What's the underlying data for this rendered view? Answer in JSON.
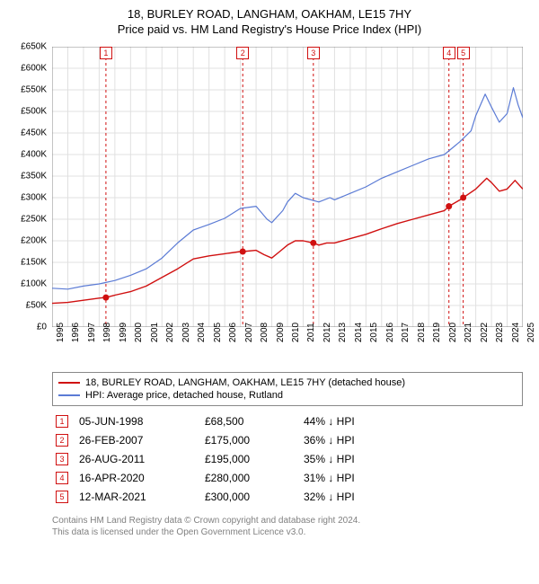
{
  "title": "18, BURLEY ROAD, LANGHAM, OAKHAM, LE15 7HY",
  "subtitle": "Price paid vs. HM Land Registry's House Price Index (HPI)",
  "chart": {
    "type": "line",
    "background_color": "#ffffff",
    "grid_color": "#e0e0e0",
    "tick_color": "#888888",
    "x": {
      "min": 1995,
      "max": 2025,
      "ticks": [
        1995,
        1996,
        1997,
        1998,
        1999,
        2000,
        2001,
        2002,
        2003,
        2004,
        2005,
        2006,
        2007,
        2008,
        2009,
        2010,
        2011,
        2012,
        2013,
        2014,
        2015,
        2016,
        2017,
        2018,
        2019,
        2020,
        2021,
        2022,
        2023,
        2024,
        2025
      ]
    },
    "y": {
      "min": 0,
      "max": 650000,
      "tick_step": 50000,
      "prefix": "£",
      "suffix_k": "K",
      "labels": [
        "£0",
        "£50K",
        "£100K",
        "£150K",
        "£200K",
        "£250K",
        "£300K",
        "£350K",
        "£400K",
        "£450K",
        "£500K",
        "£550K",
        "£600K",
        "£650K"
      ]
    },
    "series": [
      {
        "name": "property",
        "label": "18, BURLEY ROAD, LANGHAM, OAKHAM, LE15 7HY (detached house)",
        "color": "#d01010",
        "width": 1.4,
        "data": [
          [
            1995,
            55000
          ],
          [
            1996,
            57000
          ],
          [
            1997,
            62000
          ],
          [
            1998,
            67000
          ],
          [
            1998.43,
            68500
          ],
          [
            1999,
            74000
          ],
          [
            2000,
            82000
          ],
          [
            2001,
            95000
          ],
          [
            2002,
            115000
          ],
          [
            2003,
            135000
          ],
          [
            2004,
            158000
          ],
          [
            2005,
            165000
          ],
          [
            2006,
            170000
          ],
          [
            2007,
            175000
          ],
          [
            2007.15,
            175000
          ],
          [
            2008,
            178000
          ],
          [
            2008.5,
            168000
          ],
          [
            2009,
            160000
          ],
          [
            2009.5,
            175000
          ],
          [
            2010,
            190000
          ],
          [
            2010.5,
            200000
          ],
          [
            2011,
            200000
          ],
          [
            2011.65,
            195000
          ],
          [
            2012,
            190000
          ],
          [
            2012.5,
            195000
          ],
          [
            2013,
            195000
          ],
          [
            2014,
            205000
          ],
          [
            2015,
            215000
          ],
          [
            2016,
            228000
          ],
          [
            2017,
            240000
          ],
          [
            2018,
            250000
          ],
          [
            2019,
            260000
          ],
          [
            2020,
            270000
          ],
          [
            2020.29,
            280000
          ],
          [
            2021,
            295000
          ],
          [
            2021.2,
            300000
          ],
          [
            2022,
            320000
          ],
          [
            2022.7,
            345000
          ],
          [
            2023,
            335000
          ],
          [
            2023.5,
            315000
          ],
          [
            2024,
            320000
          ],
          [
            2024.5,
            340000
          ],
          [
            2025,
            320000
          ]
        ]
      },
      {
        "name": "hpi",
        "label": "HPI: Average price, detached house, Rutland",
        "color": "#5b7bd5",
        "width": 1.2,
        "data": [
          [
            1995,
            90000
          ],
          [
            1996,
            88000
          ],
          [
            1997,
            95000
          ],
          [
            1998,
            100000
          ],
          [
            1999,
            108000
          ],
          [
            2000,
            120000
          ],
          [
            2001,
            135000
          ],
          [
            2002,
            160000
          ],
          [
            2003,
            195000
          ],
          [
            2004,
            225000
          ],
          [
            2005,
            238000
          ],
          [
            2006,
            252000
          ],
          [
            2007,
            275000
          ],
          [
            2008,
            280000
          ],
          [
            2008.7,
            250000
          ],
          [
            2009,
            242000
          ],
          [
            2009.7,
            270000
          ],
          [
            2010,
            290000
          ],
          [
            2010.5,
            310000
          ],
          [
            2011,
            300000
          ],
          [
            2012,
            290000
          ],
          [
            2012.7,
            300000
          ],
          [
            2013,
            295000
          ],
          [
            2014,
            310000
          ],
          [
            2015,
            325000
          ],
          [
            2016,
            345000
          ],
          [
            2017,
            360000
          ],
          [
            2018,
            375000
          ],
          [
            2019,
            390000
          ],
          [
            2020,
            400000
          ],
          [
            2021,
            430000
          ],
          [
            2021.7,
            455000
          ],
          [
            2022,
            490000
          ],
          [
            2022.6,
            540000
          ],
          [
            2023,
            510000
          ],
          [
            2023.5,
            475000
          ],
          [
            2024,
            495000
          ],
          [
            2024.4,
            555000
          ],
          [
            2024.7,
            515000
          ],
          [
            2025,
            485000
          ]
        ]
      }
    ],
    "markers": {
      "box_border_color": "#d01010",
      "vline_color": "#d01010",
      "vline_dash": "3,3",
      "point_fill": "#d01010",
      "items": [
        {
          "n": "1",
          "x": 1998.43,
          "y": 68500
        },
        {
          "n": "2",
          "x": 2007.15,
          "y": 175000
        },
        {
          "n": "3",
          "x": 2011.65,
          "y": 195000
        },
        {
          "n": "4",
          "x": 2020.29,
          "y": 280000
        },
        {
          "n": "5",
          "x": 2021.2,
          "y": 300000
        }
      ]
    }
  },
  "legend": {
    "rows": [
      {
        "color": "#d01010",
        "label_path": "chart.series.0.label"
      },
      {
        "color": "#5b7bd5",
        "label_path": "chart.series.1.label"
      }
    ]
  },
  "events": {
    "arrow": "↓",
    "rows": [
      {
        "n": "1",
        "date": "05-JUN-1998",
        "price": "£68,500",
        "pct": "44%",
        "suffix": "HPI"
      },
      {
        "n": "2",
        "date": "26-FEB-2007",
        "price": "£175,000",
        "pct": "36%",
        "suffix": "HPI"
      },
      {
        "n": "3",
        "date": "26-AUG-2011",
        "price": "£195,000",
        "pct": "35%",
        "suffix": "HPI"
      },
      {
        "n": "4",
        "date": "16-APR-2020",
        "price": "£280,000",
        "pct": "31%",
        "suffix": "HPI"
      },
      {
        "n": "5",
        "date": "12-MAR-2021",
        "price": "£300,000",
        "pct": "32%",
        "suffix": "HPI"
      }
    ]
  },
  "footer": {
    "line1": "Contains HM Land Registry data © Crown copyright and database right 2024.",
    "line2": "This data is licensed under the Open Government Licence v3.0."
  }
}
